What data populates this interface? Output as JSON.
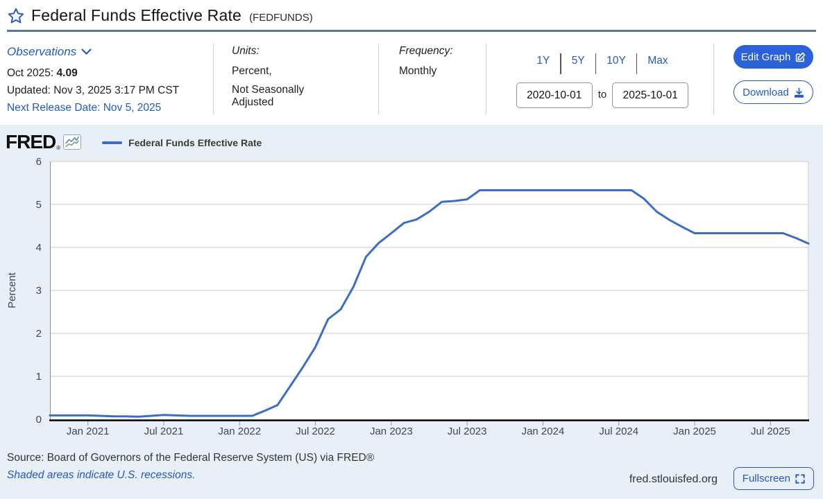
{
  "header": {
    "title": "Federal Funds Effective Rate",
    "ticker": "(FEDFUNDS)"
  },
  "meta": {
    "observations_label": "Observations",
    "latest_label": "Oct 2025:",
    "latest_value": "4.09",
    "updated": "Updated: Nov 3, 2025 3:17 PM CST",
    "next_release": "Next Release Date: Nov 5, 2025",
    "units_label": "Units:",
    "units_line1": "Percent,",
    "units_line2": "Not Seasonally Adjusted",
    "frequency_label": "Frequency:",
    "frequency_value": "Monthly",
    "ranges": [
      "1Y",
      "5Y",
      "10Y",
      "Max"
    ],
    "date_from": "2020-10-01",
    "date_to_label": "to",
    "date_to": "2025-10-01",
    "edit_graph_label": "Edit Graph",
    "download_label": "Download"
  },
  "brand": {
    "logo": "FRED",
    "logo_reg": "®",
    "legend_label": "Federal Funds Effective Rate"
  },
  "chart_data": {
    "type": "line",
    "title": "Federal Funds Effective Rate",
    "ylabel": "Percent",
    "ylim": [
      0,
      6
    ],
    "yticks": [
      0,
      1,
      2,
      3,
      4,
      5,
      6
    ],
    "grid": true,
    "legend_position": "top-left",
    "xtick_labels": [
      "Jan 2021",
      "Jul 2021",
      "Jan 2022",
      "Jul 2022",
      "Jan 2023",
      "Jul 2023",
      "Jan 2024",
      "Jul 2024",
      "Jan 2025",
      "Jul 2025"
    ],
    "xtick_month_index": [
      3,
      9,
      15,
      21,
      27,
      33,
      39,
      45,
      51,
      57
    ],
    "x_range": [
      "2020-10",
      "2025-10"
    ],
    "line_color": "#3b6dc7",
    "series": [
      {
        "name": "Federal Funds Effective Rate",
        "x": [
          "2020-10",
          "2020-11",
          "2020-12",
          "2021-01",
          "2021-02",
          "2021-03",
          "2021-04",
          "2021-05",
          "2021-06",
          "2021-07",
          "2021-08",
          "2021-09",
          "2021-10",
          "2021-11",
          "2021-12",
          "2022-01",
          "2022-02",
          "2022-03",
          "2022-04",
          "2022-05",
          "2022-06",
          "2022-07",
          "2022-08",
          "2022-09",
          "2022-10",
          "2022-11",
          "2022-12",
          "2023-01",
          "2023-02",
          "2023-03",
          "2023-04",
          "2023-05",
          "2023-06",
          "2023-07",
          "2023-08",
          "2023-09",
          "2023-10",
          "2023-11",
          "2023-12",
          "2024-01",
          "2024-02",
          "2024-03",
          "2024-04",
          "2024-05",
          "2024-06",
          "2024-07",
          "2024-08",
          "2024-09",
          "2024-10",
          "2024-11",
          "2024-12",
          "2025-01",
          "2025-02",
          "2025-03",
          "2025-04",
          "2025-05",
          "2025-06",
          "2025-07",
          "2025-08",
          "2025-09",
          "2025-10"
        ],
        "values": [
          0.09,
          0.09,
          0.09,
          0.09,
          0.08,
          0.07,
          0.07,
          0.06,
          0.08,
          0.1,
          0.09,
          0.08,
          0.08,
          0.08,
          0.08,
          0.08,
          0.08,
          0.2,
          0.33,
          0.77,
          1.21,
          1.68,
          2.33,
          2.56,
          3.08,
          3.78,
          4.1,
          4.33,
          4.57,
          4.65,
          4.83,
          5.06,
          5.08,
          5.12,
          5.33,
          5.33,
          5.33,
          5.33,
          5.33,
          5.33,
          5.33,
          5.33,
          5.33,
          5.33,
          5.33,
          5.33,
          5.33,
          5.13,
          4.83,
          4.64,
          4.48,
          4.33,
          4.33,
          4.33,
          4.33,
          4.33,
          4.33,
          4.33,
          4.33,
          4.22,
          4.09
        ]
      }
    ]
  },
  "footer": {
    "source": "Source: Board of Governors of the Federal Reserve System (US) via FRED®",
    "recessions_note": "Shaded areas indicate U.S. recessions.",
    "site": "fred.stlouisfed.org",
    "fullscreen_label": "Fullscreen"
  },
  "colors": {
    "link_blue": "#2358c8",
    "button_blue": "#2b62d9",
    "line_blue": "#3b6dc7",
    "title_divider": "#5b7997",
    "chart_background": "#e9eff6",
    "plot_background": "#ffffff",
    "gridline": "#c9c9c9",
    "axis_text": "#404552",
    "axis_line": "#000000"
  }
}
